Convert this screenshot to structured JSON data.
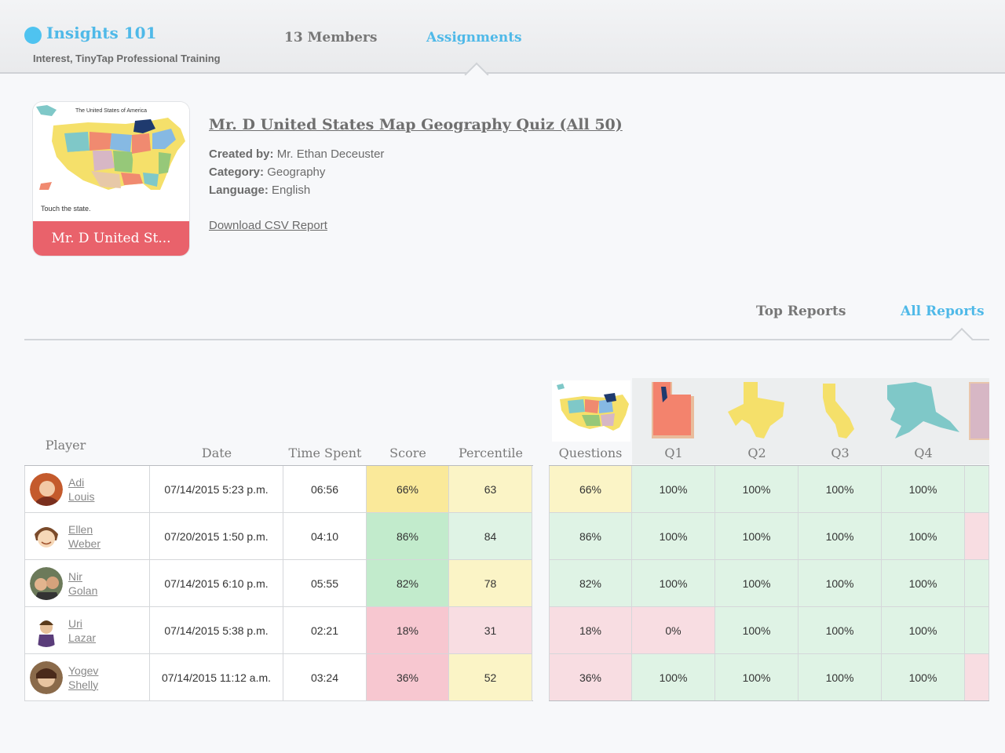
{
  "header": {
    "brand": "Insights 101",
    "subtitle": "Interest, TinyTap Professional Training",
    "nav": {
      "members": "13 Members",
      "assignments": "Assignments"
    }
  },
  "assignment": {
    "thumb_map_title": "The United States of America",
    "thumb_touch_text": "Touch the state.",
    "thumb_label": "Mr. D United St...",
    "title": "Mr. D United States Map Geography Quiz (All 50)",
    "created_by_label": "Created by:",
    "created_by": "Mr. Ethan Deceuster",
    "category_label": "Category:",
    "category": "Geography",
    "language_label": "Language:",
    "language": "English",
    "download_link": "Download CSV Report"
  },
  "reports": {
    "top_tab": "Top Reports",
    "all_tab": "All Reports"
  },
  "table": {
    "headers": {
      "player": "Player",
      "date": "Date",
      "time_spent": "Time Spent",
      "score": "Score",
      "percentile": "Percentile",
      "questions": "Questions",
      "q1": "Q1",
      "q2": "Q2",
      "q3": "Q3",
      "q4": "Q4"
    },
    "rows": [
      {
        "first": "Adi",
        "last": "Louis",
        "date": "07/14/2015 5:23 p.m.",
        "time": "06:56",
        "score": "66%",
        "percentile": "63",
        "questions": "66%",
        "q1": "100%",
        "q2": "100%",
        "q3": "100%",
        "q4": "100%"
      },
      {
        "first": "Ellen",
        "last": "Weber",
        "date": "07/20/2015 1:50 p.m.",
        "time": "04:10",
        "score": "86%",
        "percentile": "84",
        "questions": "86%",
        "q1": "100%",
        "q2": "100%",
        "q3": "100%",
        "q4": "100%"
      },
      {
        "first": "Nir",
        "last": "Golan",
        "date": "07/14/2015 6:10 p.m.",
        "time": "05:55",
        "score": "82%",
        "percentile": "78",
        "questions": "82%",
        "q1": "100%",
        "q2": "100%",
        "q3": "100%",
        "q4": "100%"
      },
      {
        "first": "Uri",
        "last": "Lazar",
        "date": "07/14/2015 5:38 p.m.",
        "time": "02:21",
        "score": "18%",
        "percentile": "31",
        "questions": "18%",
        "q1": "0%",
        "q2": "100%",
        "q3": "100%",
        "q4": "100%"
      },
      {
        "first": "Yogev",
        "last": "Shelly",
        "date": "07/14/2015 11:12 a.m.",
        "time": "03:24",
        "score": "36%",
        "percentile": "52",
        "questions": "36%",
        "q1": "100%",
        "q2": "100%",
        "q3": "100%",
        "q4": "100%"
      }
    ]
  },
  "colors": {
    "accent": "#4fb9e8",
    "thumb_bar": "#e9626b",
    "score_high": "#c2ebcc",
    "score_mid": "#fae99a",
    "score_low": "#f7c7d0"
  }
}
